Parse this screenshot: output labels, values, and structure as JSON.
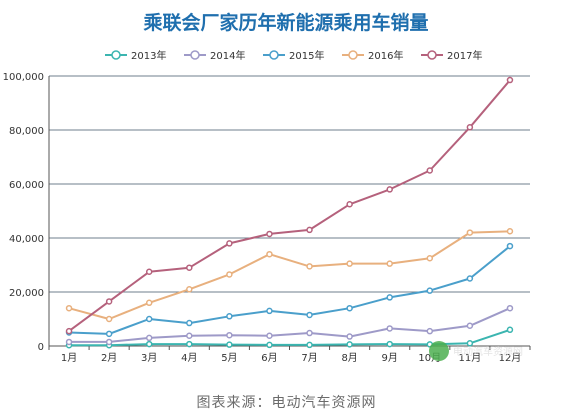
{
  "chart_data": {
    "type": "line",
    "title": "乘联会厂家历年新能源乘用车销量",
    "categories": [
      "1月",
      "2月",
      "3月",
      "4月",
      "5月",
      "6月",
      "7月",
      "8月",
      "9月",
      "10月",
      "11月",
      "12月"
    ],
    "y_ticks": [
      "0",
      "20,000",
      "40,000",
      "60,000",
      "80,000",
      "100,000"
    ],
    "ylim": [
      0,
      100000
    ],
    "grid": true,
    "legend_position": "top-center",
    "series": [
      {
        "name": "2013年",
        "color": "#3bb5b0",
        "values": [
          300,
          300,
          700,
          700,
          500,
          400,
          400,
          600,
          700,
          600,
          1000,
          6000
        ]
      },
      {
        "name": "2014年",
        "color": "#9e9ac8",
        "values": [
          1500,
          1500,
          3000,
          3800,
          4000,
          3800,
          4800,
          3500,
          6500,
          5500,
          7500,
          14000
        ]
      },
      {
        "name": "2015年",
        "color": "#4a9fcb",
        "values": [
          5000,
          4500,
          10000,
          8500,
          11000,
          13000,
          11500,
          14000,
          18000,
          20500,
          25000,
          37000
        ]
      },
      {
        "name": "2016年",
        "color": "#e8b07e",
        "values": [
          14000,
          10000,
          16000,
          21000,
          26500,
          34000,
          29500,
          30500,
          30500,
          32500,
          42000,
          42500
        ]
      },
      {
        "name": "2017年",
        "color": "#b5617c",
        "values": [
          5500,
          16500,
          27500,
          29000,
          38000,
          41500,
          43000,
          52500,
          58000,
          65000,
          81000,
          98500
        ]
      }
    ]
  },
  "source_text": "图表来源：电动汽车资源网",
  "watermark_text": "电动汽车资源网"
}
